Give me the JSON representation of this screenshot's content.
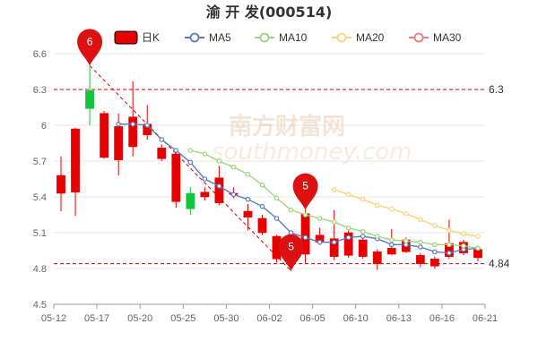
{
  "chart_data": {
    "type": "candlestick",
    "title": "渝 开 发(000514)",
    "watermark": {
      "cn": "南方财富网",
      "en": "southmoney.com"
    },
    "legend": {
      "position": "top",
      "items": [
        {
          "label": "日K",
          "color": "#e60000"
        },
        {
          "label": "MA5",
          "color": "#5b7bbd"
        },
        {
          "label": "MA10",
          "color": "#9fd37e"
        },
        {
          "label": "MA20",
          "color": "#f8d47d"
        },
        {
          "label": "MA30",
          "color": "#f07c7c"
        }
      ]
    },
    "ylim": [
      4.5,
      6.6
    ],
    "yticks": [
      "4.5",
      "4.8",
      "5.1",
      "5.4",
      "5.7",
      "6",
      "6.3",
      "6.6"
    ],
    "xtick_labels": [
      "05-12",
      "05-17",
      "05-20",
      "05-25",
      "05-30",
      "06-02",
      "06-05",
      "06-10",
      "06-13",
      "06-16",
      "06-21"
    ],
    "xtick_index": [
      0,
      3,
      6,
      9,
      12,
      15,
      18,
      21,
      24,
      27,
      30
    ],
    "candles": [
      {
        "o": 5.43,
        "c": 5.58,
        "h": 5.74,
        "l": 5.28
      },
      {
        "o": 5.44,
        "c": 5.97,
        "h": 5.98,
        "l": 5.24
      },
      {
        "o": 6.29,
        "c": 6.14,
        "h": 6.5,
        "l": 6.0
      },
      {
        "o": 5.73,
        "c": 6.1,
        "h": 6.12,
        "l": 5.72
      },
      {
        "o": 5.71,
        "c": 5.99,
        "h": 6.1,
        "l": 5.58
      },
      {
        "o": 5.82,
        "c": 6.07,
        "h": 6.37,
        "l": 5.74
      },
      {
        "o": 5.92,
        "c": 6.01,
        "h": 6.17,
        "l": 5.88
      },
      {
        "o": 5.72,
        "c": 5.81,
        "h": 5.84,
        "l": 5.7
      },
      {
        "o": 5.36,
        "c": 5.76,
        "h": 5.78,
        "l": 5.31
      },
      {
        "o": 5.43,
        "c": 5.3,
        "h": 5.48,
        "l": 5.25
      },
      {
        "o": 5.4,
        "c": 5.44,
        "h": 5.48,
        "l": 5.37
      },
      {
        "o": 5.35,
        "c": 5.56,
        "h": 5.66,
        "l": 5.33
      },
      {
        "o": 5.42,
        "c": 5.43,
        "h": 5.48,
        "l": 5.39
      },
      {
        "o": 5.23,
        "c": 5.28,
        "h": 5.34,
        "l": 5.12
      },
      {
        "o": 5.1,
        "c": 5.22,
        "h": 5.25,
        "l": 5.08
      },
      {
        "o": 4.88,
        "c": 5.07,
        "h": 5.08,
        "l": 4.85
      },
      {
        "o": 4.88,
        "c": 4.96,
        "h": 5.0,
        "l": 4.78
      },
      {
        "o": 4.92,
        "c": 5.26,
        "h": 5.29,
        "l": 4.84
      },
      {
        "o": 5.02,
        "c": 5.08,
        "h": 5.14,
        "l": 5.0
      },
      {
        "o": 4.9,
        "c": 5.05,
        "h": 5.29,
        "l": 4.87
      },
      {
        "o": 4.91,
        "c": 5.1,
        "h": 5.16,
        "l": 4.89
      },
      {
        "o": 4.9,
        "c": 5.04,
        "h": 5.06,
        "l": 4.88
      },
      {
        "o": 4.84,
        "c": 4.94,
        "h": 4.96,
        "l": 4.79
      },
      {
        "o": 4.92,
        "c": 4.97,
        "h": 5.13,
        "l": 4.91
      },
      {
        "o": 4.94,
        "c": 5.04,
        "h": 5.06,
        "l": 4.93
      },
      {
        "o": 4.84,
        "c": 4.91,
        "h": 4.93,
        "l": 4.81
      },
      {
        "o": 4.82,
        "c": 4.88,
        "h": 4.9,
        "l": 4.8
      },
      {
        "o": 4.9,
        "c": 5.01,
        "h": 5.21,
        "l": 4.88
      },
      {
        "o": 4.93,
        "c": 5.02,
        "h": 5.04,
        "l": 4.91
      },
      {
        "o": 4.89,
        "c": 4.96,
        "h": 4.98,
        "l": 4.86
      }
    ],
    "ma5": [
      null,
      null,
      null,
      null,
      6.01,
      6.01,
      6.0,
      5.88,
      5.79,
      5.69,
      5.55,
      5.49,
      5.42,
      5.38,
      5.32,
      5.22,
      5.1,
      5.06,
      5.02,
      5.02,
      5.06,
      5.07,
      5.05,
      5.0,
      5.0,
      4.98,
      4.94,
      4.93,
      4.96,
      4.97
    ],
    "ma10": [
      null,
      null,
      null,
      null,
      null,
      null,
      null,
      null,
      null,
      5.79,
      5.76,
      5.7,
      5.65,
      5.59,
      5.5,
      5.39,
      5.29,
      5.25,
      5.22,
      5.19,
      5.14,
      5.11,
      5.07,
      5.04,
      5.03,
      5.02,
      5.0,
      5.0,
      4.99,
      4.97
    ],
    "ma20": [
      null,
      null,
      null,
      null,
      null,
      null,
      null,
      null,
      null,
      null,
      null,
      null,
      null,
      null,
      null,
      null,
      null,
      null,
      null,
      5.46,
      5.42,
      5.38,
      5.33,
      5.3,
      5.26,
      5.21,
      5.16,
      5.12,
      5.09,
      5.07
    ],
    "ma30": [],
    "ref_lines": [
      {
        "value": 6.3,
        "label": "6.3"
      },
      {
        "value": 4.84,
        "label": "4.84"
      }
    ],
    "markers": [
      {
        "index": 2,
        "value": 6.5,
        "label": "6"
      },
      {
        "index": 17,
        "value": 5.29,
        "label": "5"
      },
      {
        "index": 16,
        "value": 4.78,
        "label": "5"
      }
    ],
    "trend_line": {
      "from_index": 2,
      "from_value": 6.5,
      "to_index": 16,
      "to_value": 4.78
    }
  }
}
